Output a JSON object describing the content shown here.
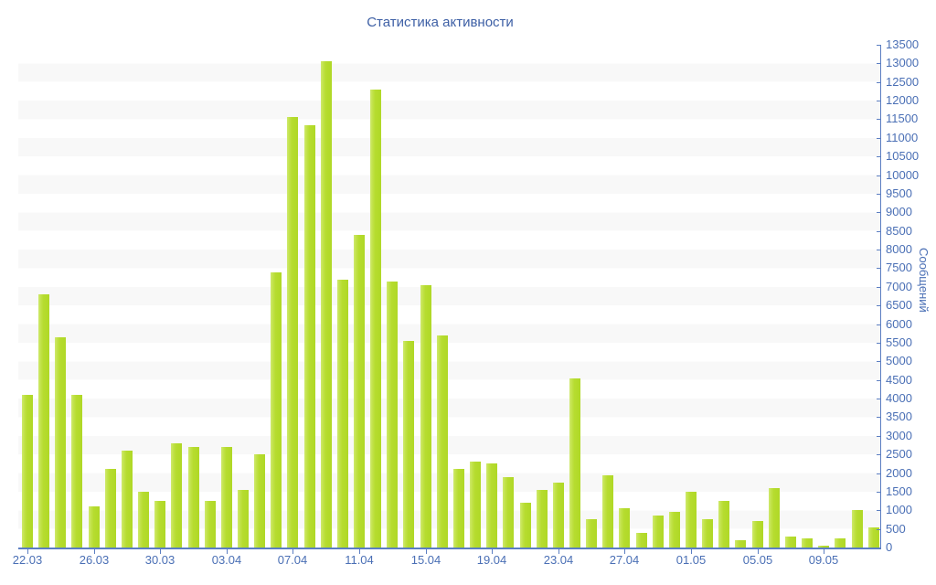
{
  "title": "Статистика активности",
  "colors": {
    "title": "#3d5fa5",
    "axis_line": "#5b7ec2",
    "tick_label": "#4a6fb5",
    "bar_main": "#b6dc2f",
    "bar_highlight": "#cfe96e",
    "stripe_band": "#f8f8f8",
    "background": "#ffffff"
  },
  "chart_data": {
    "type": "bar",
    "title": "Статистика активности",
    "xlabel": "",
    "ylabel": "Сообщений",
    "ylim": [
      0,
      13500
    ],
    "ytick_step": 500,
    "grid": "horizontal alternating stripe bands, 500 units tall",
    "legend": false,
    "categories": [
      "22.03",
      "23.03",
      "24.03",
      "25.03",
      "26.03",
      "27.03",
      "28.03",
      "29.03",
      "30.03",
      "31.03",
      "01.04",
      "02.04",
      "03.04",
      "04.04",
      "05.04",
      "06.04",
      "07.04",
      "08.04",
      "09.04",
      "10.04",
      "11.04",
      "12.04",
      "13.04",
      "14.04",
      "15.04",
      "16.04",
      "17.04",
      "18.04",
      "19.04",
      "20.04",
      "21.04",
      "22.04",
      "23.04",
      "24.04",
      "25.04",
      "26.04",
      "27.04",
      "28.04",
      "29.04",
      "30.04",
      "01.05",
      "02.05",
      "03.05",
      "04.05",
      "05.05",
      "06.05",
      "07.05",
      "08.05",
      "09.05",
      "10.05",
      "11.05",
      "12.05"
    ],
    "values": [
      4100,
      6800,
      5650,
      4100,
      1100,
      2100,
      2600,
      1500,
      1250,
      2800,
      2700,
      1250,
      2700,
      1550,
      2500,
      7400,
      11550,
      11350,
      13050,
      7200,
      8400,
      12300,
      7150,
      5550,
      7050,
      5700,
      2100,
      2300,
      2250,
      1900,
      1200,
      1550,
      1750,
      4550,
      750,
      1950,
      1050,
      400,
      850,
      950,
      1500,
      750,
      1250,
      200,
      700,
      1600,
      300,
      250,
      50,
      250,
      1000,
      550
    ],
    "xtick_labels": [
      "22.03",
      "26.03",
      "30.03",
      "03.04",
      "07.04",
      "11.04",
      "15.04",
      "19.04",
      "23.04",
      "27.04",
      "01.05",
      "05.05",
      "09.05"
    ],
    "xtick_every": 4
  }
}
